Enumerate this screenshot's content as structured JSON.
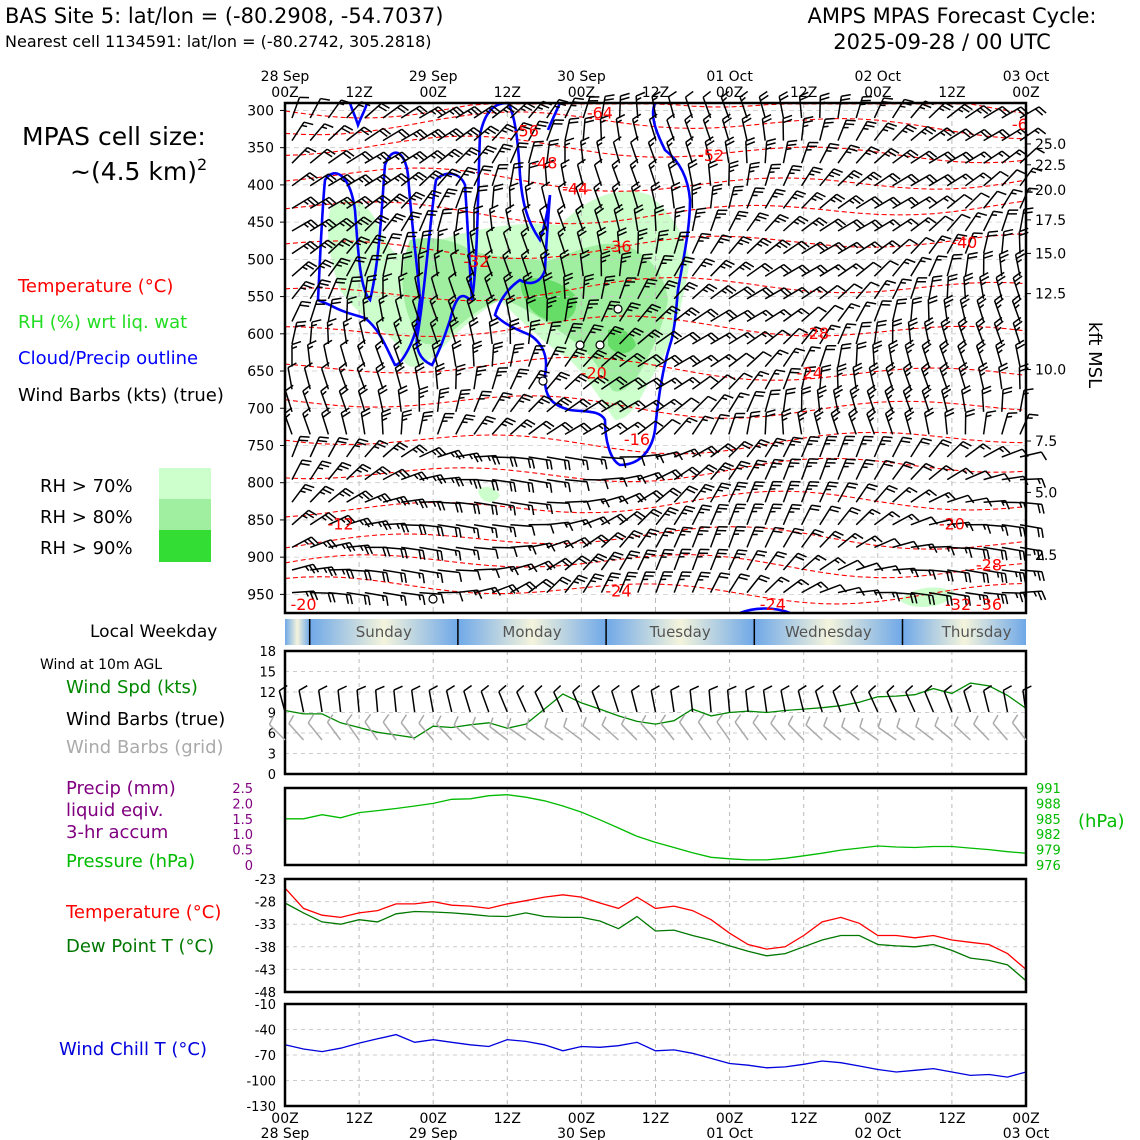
{
  "header": {
    "site_line": "BAS Site 5: lat/lon = (-80.2908, -54.7037)",
    "cell_line": "Nearest cell 1134591: lat/lon = (-80.2742, 305.2818)",
    "cycle_line1": "AMPS MPAS Forecast Cycle:",
    "cycle_line2": "2025-09-28 / 00 UTC"
  },
  "legend": {
    "cell_size_1": "MPAS cell size:",
    "cell_size_2": "~(4.5 km)",
    "cell_size_sup": "2",
    "temp": "Temperature (°C)",
    "rh": "RH (%) wrt liq. wat",
    "cloud": "Cloud/Precip outline",
    "wind": "Wind Barbs (kts) (true)",
    "rh70": "RH > 70%",
    "rh80": "RH > 80%",
    "rh90": "RH > 90%"
  },
  "colors": {
    "temp": "#ff0000",
    "rh_text": "#22dd22",
    "cloud": "#0000ff",
    "rh70": "#ccffcc",
    "rh80": "#a0eea0",
    "rh90": "#33dd33",
    "wind_spd": "#008800",
    "precip": "#800080",
    "pressure": "#00bb00",
    "dewpoint": "#007700",
    "windchill": "#0000dd",
    "grid_barb": "#aaaaaa"
  },
  "time_axis": {
    "top_dates": [
      "28 Sep",
      "29 Sep",
      "30 Sep",
      "01 Oct",
      "02 Oct",
      "03 Oct"
    ],
    "hour_labels": [
      "00Z",
      "12Z",
      "00Z",
      "12Z",
      "00Z",
      "12Z",
      "00Z",
      "12Z",
      "00Z",
      "12Z",
      "00Z"
    ],
    "bottom_dates": [
      "28 Sep",
      "29 Sep",
      "30 Sep",
      "01 Oct",
      "02 Oct",
      "03 Oct"
    ]
  },
  "weekday": {
    "label": "Local Weekday",
    "days": [
      "Sunday",
      "Monday",
      "Tuesday",
      "Wednesday",
      "Thursday"
    ]
  },
  "panels": {
    "wind10": {
      "title": "Wind at 10m AGL",
      "spd_label": "Wind Spd (kts)",
      "barb_true": "Wind Barbs (true)",
      "barb_grid": "Wind Barbs (grid)"
    },
    "precip": {
      "p1": "Precip (mm)",
      "p2": "liquid eqiv.",
      "p3": "3-hr accum",
      "pressure_label": "Pressure (hPa)",
      "hpa_unit": "(hPa)"
    },
    "temp": {
      "temp_label": "Temperature (°C)",
      "dew_label": "Dew Point T (°C)"
    },
    "chill": {
      "label": "Wind Chill T (°C)"
    }
  },
  "chart_data": [
    {
      "type": "contour",
      "panel": "upper-air time-height section",
      "x_hours": [
        0,
        120
      ],
      "y_pressure_hpa": [
        975,
        290
      ],
      "pressure_ticks": [
        300,
        350,
        400,
        450,
        500,
        550,
        600,
        650,
        700,
        750,
        800,
        850,
        900,
        950
      ],
      "right_axis_label": "kft MSL",
      "right_ticks": [
        {
          "kft": "25.0",
          "p": 345
        },
        {
          "kft": "22.5",
          "p": 373
        },
        {
          "kft": "20.0",
          "p": 407
        },
        {
          "kft": "17.5",
          "p": 447
        },
        {
          "kft": "15.0",
          "p": 492
        },
        {
          "kft": "12.5",
          "p": 546
        },
        {
          "kft": "10.0",
          "p": 648
        },
        {
          "kft": "7.5",
          "p": 744
        },
        {
          "kft": "5.0",
          "p": 813
        },
        {
          "kft": "2.5",
          "p": 897
        }
      ],
      "temperature_labels": [
        {
          "text": "-64",
          "h": 51,
          "p": 303
        },
        {
          "text": "-6",
          "h": 119,
          "p": 318
        },
        {
          "text": "-56",
          "h": 39,
          "p": 327
        },
        {
          "text": "-52",
          "h": 69,
          "p": 360
        },
        {
          "text": "-48",
          "h": 42,
          "p": 370
        },
        {
          "text": "-44",
          "h": 47,
          "p": 405
        },
        {
          "text": "-40",
          "h": 110,
          "p": 477
        },
        {
          "text": "-36",
          "h": 54,
          "p": 482
        },
        {
          "text": "-32",
          "h": 31,
          "p": 502
        },
        {
          "text": "-28",
          "h": 86,
          "p": 599
        },
        {
          "text": "-24",
          "h": 85,
          "p": 652
        },
        {
          "text": "-20",
          "h": 50,
          "p": 652
        },
        {
          "text": "-16",
          "h": 57,
          "p": 741
        },
        {
          "text": "-12",
          "h": 9,
          "p": 855
        },
        {
          "text": "-20",
          "h": 108,
          "p": 855
        },
        {
          "text": "-28",
          "h": 114,
          "p": 910
        },
        {
          "text": "-24",
          "h": 54,
          "p": 945
        },
        {
          "text": "-20",
          "h": 3,
          "p": 963
        },
        {
          "text": "-24",
          "h": 79,
          "p": 963
        },
        {
          "text": "-32",
          "h": 109,
          "p": 963
        },
        {
          "text": "-36",
          "h": 114,
          "p": 963
        }
      ]
    },
    {
      "type": "line",
      "panel": "wind at 10m",
      "ylim": [
        0,
        18
      ],
      "yticks": [
        0,
        3,
        6,
        9,
        12,
        15,
        18
      ],
      "series": [
        {
          "name": "Wind Spd (kts)",
          "x": [
            0,
            3,
            6,
            9,
            12,
            15,
            18,
            21,
            24,
            27,
            30,
            33,
            36,
            39,
            42,
            45,
            48,
            51,
            54,
            57,
            60,
            63,
            66,
            69,
            72,
            75,
            78,
            81,
            84,
            87,
            90,
            93,
            96,
            99,
            102,
            105,
            108,
            111,
            114,
            117,
            120
          ],
          "y": [
            9.3,
            8.8,
            8.8,
            7.5,
            6.8,
            6.1,
            5.7,
            5.3,
            7,
            6.8,
            7.2,
            7.5,
            6.7,
            7.3,
            9.5,
            11.7,
            10.4,
            9.5,
            8.5,
            7.7,
            7.3,
            7.8,
            9.5,
            8.5,
            9,
            9.2,
            9,
            9.3,
            9.5,
            9.7,
            10,
            10.5,
            11.3,
            11.4,
            11.6,
            12.5,
            11.8,
            13.3,
            12.9,
            11.5,
            9.6
          ]
        }
      ]
    },
    {
      "type": "line",
      "panel": "precip and pressure",
      "y_left": {
        "label": "Precip (mm)",
        "ylim": [
          0,
          2.5
        ],
        "yticks": [
          0,
          0.5,
          1.0,
          1.5,
          2.0,
          2.5
        ]
      },
      "y_right": {
        "label": "Pressure (hPa)",
        "ylim": [
          976,
          991
        ],
        "yticks": [
          976,
          979,
          982,
          985,
          988,
          991
        ]
      },
      "series": [
        {
          "name": "Pressure (hPa)",
          "x": [
            0,
            3,
            6,
            9,
            12,
            15,
            18,
            21,
            24,
            27,
            30,
            33,
            36,
            39,
            42,
            45,
            48,
            51,
            54,
            57,
            60,
            63,
            66,
            69,
            72,
            75,
            78,
            81,
            84,
            87,
            90,
            93,
            96,
            99,
            102,
            105,
            108,
            111,
            114,
            117,
            120
          ],
          "y": [
            985,
            985,
            985.8,
            985.2,
            986.2,
            986.6,
            987,
            987.5,
            988,
            988.8,
            988.9,
            989.5,
            989.7,
            989.2,
            988.5,
            987.5,
            986.3,
            984.8,
            983.2,
            981.6,
            980.4,
            979.4,
            978.4,
            977.5,
            977.2,
            977,
            977,
            977.3,
            977.8,
            978.3,
            978.9,
            979.3,
            979.7,
            979.5,
            979.4,
            979.6,
            979.6,
            979.3,
            979,
            978.6,
            978.3
          ]
        }
      ]
    },
    {
      "type": "line",
      "panel": "temperature and dew point",
      "ylim": [
        -48,
        -23
      ],
      "yticks": [
        -48,
        -43,
        -38,
        -33,
        -28,
        -23
      ],
      "series": [
        {
          "name": "Temperature (°C)",
          "x": [
            0,
            3,
            6,
            9,
            12,
            15,
            18,
            21,
            24,
            27,
            30,
            33,
            36,
            39,
            42,
            45,
            48,
            51,
            54,
            57,
            60,
            63,
            66,
            69,
            72,
            75,
            78,
            81,
            84,
            87,
            90,
            93,
            96,
            99,
            102,
            105,
            108,
            111,
            114,
            117,
            120
          ],
          "y": [
            -25,
            -29.5,
            -31,
            -31.5,
            -30.5,
            -30,
            -28.5,
            -28.5,
            -28,
            -28.8,
            -29,
            -29.5,
            -28.5,
            -27.8,
            -27,
            -26.5,
            -27,
            -28.3,
            -29.5,
            -27,
            -29.5,
            -29,
            -30,
            -32,
            -35,
            -37.5,
            -38.5,
            -38,
            -35.5,
            -32.5,
            -31.5,
            -32.8,
            -35.5,
            -35.5,
            -36,
            -35.5,
            -36.5,
            -37,
            -37.5,
            -39.5,
            -43
          ]
        },
        {
          "name": "Dew Point T (°C)",
          "x": [
            0,
            3,
            6,
            9,
            12,
            15,
            18,
            21,
            24,
            27,
            30,
            33,
            36,
            39,
            42,
            45,
            48,
            51,
            54,
            57,
            60,
            63,
            66,
            69,
            72,
            75,
            78,
            81,
            84,
            87,
            90,
            93,
            96,
            99,
            102,
            105,
            108,
            111,
            114,
            117,
            120
          ],
          "y": [
            -28.3,
            -30.5,
            -32.5,
            -33,
            -32,
            -32.5,
            -30.7,
            -30.2,
            -30.3,
            -30.5,
            -30.8,
            -31.2,
            -31.3,
            -30.5,
            -31.3,
            -31.5,
            -31.5,
            -32.3,
            -34,
            -31.3,
            -34.5,
            -34.3,
            -35.5,
            -36.5,
            -37.8,
            -39,
            -40,
            -39.5,
            -38,
            -36.5,
            -35.5,
            -35.5,
            -37.5,
            -37.8,
            -38,
            -37.5,
            -38.8,
            -40.5,
            -41,
            -42,
            -45.5
          ]
        }
      ]
    },
    {
      "type": "line",
      "panel": "wind chill",
      "ylim": [
        -130,
        -10
      ],
      "yticks": [
        -130,
        -100,
        -70,
        -40,
        -10
      ],
      "series": [
        {
          "name": "Wind Chill T (°C)",
          "x": [
            0,
            3,
            6,
            9,
            12,
            15,
            18,
            21,
            24,
            27,
            30,
            33,
            36,
            39,
            42,
            45,
            48,
            51,
            54,
            57,
            60,
            63,
            66,
            69,
            72,
            75,
            78,
            81,
            84,
            87,
            90,
            93,
            96,
            99,
            102,
            105,
            108,
            111,
            114,
            117,
            120
          ],
          "y": [
            -58,
            -63,
            -66,
            -62,
            -56,
            -51,
            -46,
            -55,
            -52,
            -55,
            -58,
            -60,
            -52,
            -54,
            -58,
            -65,
            -60,
            -61,
            -59,
            -55,
            -65,
            -64,
            -68,
            -74,
            -80,
            -82,
            -85,
            -84,
            -81,
            -77,
            -79,
            -83,
            -87,
            -90,
            -88,
            -86,
            -90,
            -94,
            -93,
            -96,
            -90
          ]
        }
      ]
    }
  ]
}
